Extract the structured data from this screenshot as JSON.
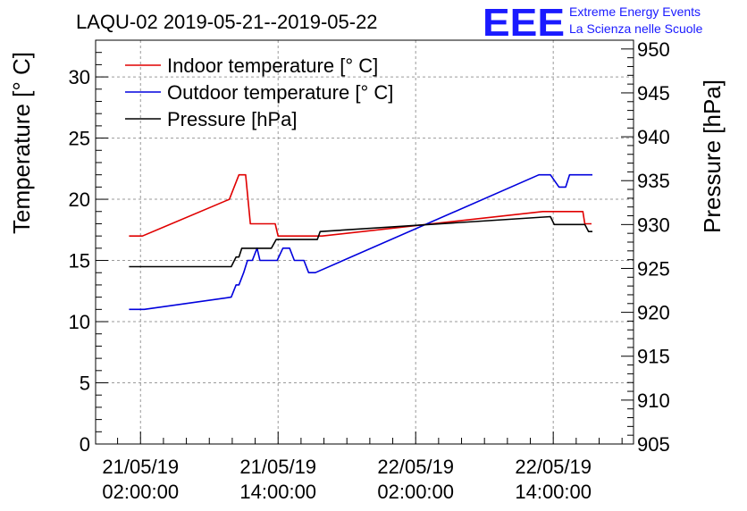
{
  "chart_data": {
    "type": "line",
    "title": "LAQU-02 2019-05-21--2019-05-22",
    "logo": {
      "mark": "EEE",
      "line1": "Extreme Energy Events",
      "line2": "La Scienza nelle Scuole",
      "color": "#1a1aff"
    },
    "ylabel_left": "Temperature [° C]",
    "ylabel_right": "Pressure [hPa]",
    "ylim_left": [
      0,
      33
    ],
    "ylim_right": [
      905,
      951
    ],
    "xlim": [
      "2019-05-20 22:05",
      "2019-05-22 21:00"
    ],
    "y_ticks_left": [
      "0",
      "5",
      "10",
      "15",
      "20",
      "25",
      "30"
    ],
    "y_ticks_right": [
      "905",
      "910",
      "915",
      "920",
      "925",
      "930",
      "935",
      "940",
      "945",
      "950"
    ],
    "x_ticks": [
      {
        "t": "2019-05-21 02:00",
        "line1": "21/05/19",
        "line2": "02:00:00"
      },
      {
        "t": "2019-05-21 14:00",
        "line1": "21/05/19",
        "line2": "14:00:00"
      },
      {
        "t": "2019-05-22 02:00",
        "line1": "22/05/19",
        "line2": "02:00:00"
      },
      {
        "t": "2019-05-22 14:00",
        "line1": "22/05/19",
        "line2": "14:00:00"
      }
    ],
    "grid": true,
    "legend": "top-left",
    "series": [
      {
        "name": "Indoor temperature [° C]",
        "axis": "left",
        "color": "#e00000",
        "points": [
          [
            "2019-05-21 01:00",
            17
          ],
          [
            "2019-05-21 02:10",
            17
          ],
          [
            "2019-05-21 09:45",
            20
          ],
          [
            "2019-05-21 10:35",
            22
          ],
          [
            "2019-05-21 11:10",
            22
          ],
          [
            "2019-05-21 11:35",
            18
          ],
          [
            "2019-05-21 13:45",
            18
          ],
          [
            "2019-05-21 14:00",
            17
          ],
          [
            "2019-05-21 17:50",
            17
          ],
          [
            "2019-05-22 13:05",
            19
          ],
          [
            "2019-05-22 16:35",
            19
          ],
          [
            "2019-05-22 16:45",
            18
          ],
          [
            "2019-05-22 17:20",
            18
          ]
        ]
      },
      {
        "name": "Outdoor temperature [° C]",
        "axis": "left",
        "color": "#0000dd",
        "points": [
          [
            "2019-05-21 01:00",
            11
          ],
          [
            "2019-05-21 02:20",
            11
          ],
          [
            "2019-05-21 09:55",
            12
          ],
          [
            "2019-05-21 10:20",
            13
          ],
          [
            "2019-05-21 10:35",
            13
          ],
          [
            "2019-05-21 11:00",
            14
          ],
          [
            "2019-05-21 11:20",
            15
          ],
          [
            "2019-05-21 11:45",
            15
          ],
          [
            "2019-05-21 12:10",
            16
          ],
          [
            "2019-05-21 12:25",
            15
          ],
          [
            "2019-05-21 13:55",
            15
          ],
          [
            "2019-05-21 14:25",
            16
          ],
          [
            "2019-05-21 15:00",
            16
          ],
          [
            "2019-05-21 15:25",
            15
          ],
          [
            "2019-05-21 16:15",
            15
          ],
          [
            "2019-05-21 16:40",
            14
          ],
          [
            "2019-05-21 17:15",
            14
          ],
          [
            "2019-05-22 12:45",
            22
          ],
          [
            "2019-05-22 13:45",
            22
          ],
          [
            "2019-05-22 14:30",
            21
          ],
          [
            "2019-05-22 15:05",
            21
          ],
          [
            "2019-05-22 15:25",
            22
          ],
          [
            "2019-05-22 17:25",
            22
          ]
        ]
      },
      {
        "name": "Pressure [hPa]",
        "axis": "right",
        "color": "#000000",
        "points": [
          [
            "2019-05-21 01:00",
            925.2
          ],
          [
            "2019-05-21 09:55",
            925.2
          ],
          [
            "2019-05-21 10:20",
            926.3
          ],
          [
            "2019-05-21 10:35",
            926.3
          ],
          [
            "2019-05-21 10:50",
            927.3
          ],
          [
            "2019-05-21 13:25",
            927.3
          ],
          [
            "2019-05-21 13:50",
            928.3
          ],
          [
            "2019-05-21 17:25",
            928.3
          ],
          [
            "2019-05-21 17:40",
            929.2
          ],
          [
            "2019-05-22 13:45",
            930.9
          ],
          [
            "2019-05-22 14:05",
            930.0
          ],
          [
            "2019-05-22 16:45",
            930.0
          ],
          [
            "2019-05-22 17:05",
            929.2
          ],
          [
            "2019-05-22 17:25",
            929.2
          ]
        ]
      }
    ]
  }
}
